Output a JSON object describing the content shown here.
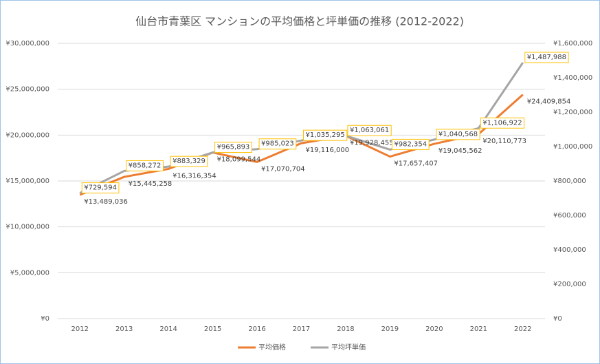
{
  "chart_data": {
    "type": "line",
    "title": "仙台市青葉区 マンションの平均価格と坪単価の推移 (2012-2022)",
    "categories": [
      "2012",
      "2013",
      "2014",
      "2015",
      "2016",
      "2017",
      "2018",
      "2019",
      "2020",
      "2021",
      "2022"
    ],
    "series": [
      {
        "name": "平均価格",
        "color": "#ed7d31",
        "values": [
          13489036,
          15445258,
          16316354,
          18099544,
          17070704,
          19116000,
          19928455,
          17657407,
          19045562,
          20110773,
          24409854
        ],
        "value_labels": [
          "¥13,489,036",
          "¥15,445,258",
          "¥16,316,354",
          "¥18,099,544",
          "¥17,070,704",
          "¥19,116,000",
          "¥19,928,455",
          "¥17,657,407",
          "¥19,045,562",
          "¥20,110,773",
          "¥24,409,854"
        ]
      },
      {
        "name": "平均坪単価",
        "color": "#a5a5a5",
        "axis": "y2",
        "values": [
          729594,
          858272,
          883329,
          965893,
          985023,
          1035295,
          1063061,
          982354,
          1040568,
          1106922,
          1487988
        ],
        "value_labels": [
          "¥729,594",
          "¥858,272",
          "¥883,329",
          "¥965,893",
          "¥985,023",
          "¥1,035,295",
          "¥1,063,061",
          "¥982,354",
          "¥1,040,568",
          "¥1,106,922",
          "¥1,487,988"
        ]
      }
    ],
    "ylim": [
      0,
      30000000
    ],
    "yticks": [
      {
        "value": 0,
        "label": "¥0"
      },
      {
        "value": 5000000,
        "label": "¥5,000,000"
      },
      {
        "value": 10000000,
        "label": "¥10,000,000"
      },
      {
        "value": 15000000,
        "label": "¥15,000,000"
      },
      {
        "value": 20000000,
        "label": "¥20,000,000"
      },
      {
        "value": 25000000,
        "label": "¥25,000,000"
      },
      {
        "value": 30000000,
        "label": "¥30,000,000"
      }
    ],
    "y2lim": [
      0,
      1600000
    ],
    "y2ticks": [
      {
        "value": 0,
        "label": "¥0"
      },
      {
        "value": 200000,
        "label": "¥200,000"
      },
      {
        "value": 400000,
        "label": "¥400,000"
      },
      {
        "value": 600000,
        "label": "¥600,000"
      },
      {
        "value": 800000,
        "label": "¥800,000"
      },
      {
        "value": 1000000,
        "label": "¥1,000,000"
      },
      {
        "value": 1200000,
        "label": "¥1,200,000"
      },
      {
        "value": 1400000,
        "label": "¥1,400,000"
      },
      {
        "value": 1600000,
        "label": "¥1,600,000"
      }
    ],
    "grid": true,
    "legend": "bottom"
  }
}
